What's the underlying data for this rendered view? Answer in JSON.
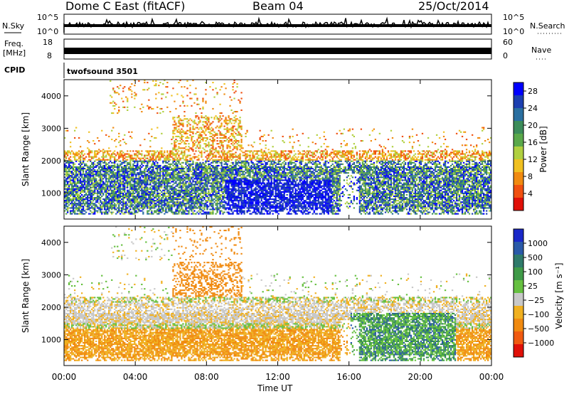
{
  "header": {
    "station": "Dome C East (fitACF)",
    "beam": "Beam 04",
    "date": "25/Oct/2014"
  },
  "summary_panels": {
    "nsky": {
      "label": "N.Sky",
      "ymin": "10^0",
      "ymax": "10^5",
      "right_label": "N.Search",
      "right_ymin": "10^0",
      "right_ymax": "10^5"
    },
    "freq": {
      "label_line1": "Freq.",
      "label_line2": "[MHz]",
      "ymin": "8",
      "ymax": "18",
      "right_label": "Nave",
      "right_ymin": "0",
      "right_ymax": "60"
    },
    "cpid": {
      "label": "CPID",
      "value": "twofsound 3501"
    }
  },
  "chart_data": [
    {
      "type": "heatmap",
      "name": "power",
      "ylabel": "Slant Range [km]",
      "xlabel": "",
      "ylim": [
        200,
        4500
      ],
      "xlim": [
        0,
        24
      ],
      "yticks": [
        "1000",
        "2000",
        "3000",
        "4000"
      ],
      "xticks": [
        "00:00",
        "04:00",
        "08:00",
        "12:00",
        "16:00",
        "20:00",
        "00:00"
      ],
      "colorbar": {
        "label": "Power [dB]",
        "ticks": [
          "4",
          "8",
          "12",
          "16",
          "20",
          "24",
          "28"
        ],
        "range": [
          0,
          30
        ],
        "colors": [
          "#0000ff",
          "#1c3fb0",
          "#2a6fa0",
          "#3c8c5a",
          "#5aa84a",
          "#b0d040",
          "#f0c020",
          "#f08a10",
          "#f05010",
          "#e01008"
        ]
      }
    },
    {
      "type": "heatmap",
      "name": "velocity",
      "ylabel": "Slant Range [km]",
      "xlabel": "Time UT",
      "ylim": [
        200,
        4500
      ],
      "xlim": [
        0,
        24
      ],
      "yticks": [
        "1000",
        "2000",
        "3000",
        "4000"
      ],
      "xticks": [
        "00:00",
        "04:00",
        "08:00",
        "12:00",
        "16:00",
        "20:00",
        "00:00"
      ],
      "colorbar": {
        "label": "Velocity [m s⁻¹]",
        "ticks": [
          "1000",
          "500",
          "100",
          "25",
          "−25",
          "−100",
          "−500",
          "−1000"
        ],
        "colors": [
          "#1a28c8",
          "#2a5aa8",
          "#2f7a6a",
          "#3f9a48",
          "#66c040",
          "#c8c8c8",
          "#f0b020",
          "#f08a10",
          "#f05a10",
          "#e01008"
        ]
      }
    }
  ]
}
